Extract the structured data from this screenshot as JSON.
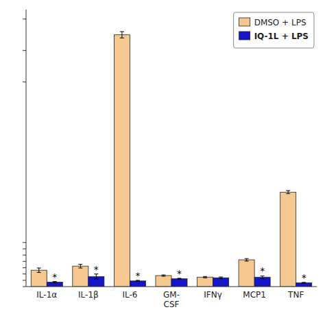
{
  "chart_data": {
    "type": "bar",
    "categories": [
      "IL-1α",
      "IL-1β",
      "IL-6",
      "GM-\nCSF",
      "IFNγ",
      "MCP1",
      "TNF"
    ],
    "series": [
      {
        "name": "DMSO + LPS",
        "color": "#F5C891",
        "values": [
          5.2,
          6.5,
          80.0,
          3.5,
          3.0,
          8.5,
          30.0
        ],
        "errors": [
          0.7,
          0.6,
          1.0,
          0.2,
          0.2,
          0.4,
          0.5
        ]
      },
      {
        "name": "IQ-1L + LPS",
        "color": "#1515CC",
        "values": [
          1.4,
          3.2,
          1.8,
          2.5,
          2.8,
          3.0,
          1.2
        ],
        "errors": [
          0.2,
          0.8,
          0.2,
          0.15,
          0.25,
          0.4,
          0.15
        ],
        "labels": [
          "*",
          "*",
          "*",
          "*",
          null,
          "*",
          "*"
        ]
      }
    ],
    "ylim": [
      0,
      88
    ],
    "yticks": [
      0,
      2,
      4,
      6,
      8,
      10,
      12,
      14,
      65,
      75,
      85
    ],
    "tick_labels": "x",
    "grid": false,
    "legend": "upper right"
  }
}
